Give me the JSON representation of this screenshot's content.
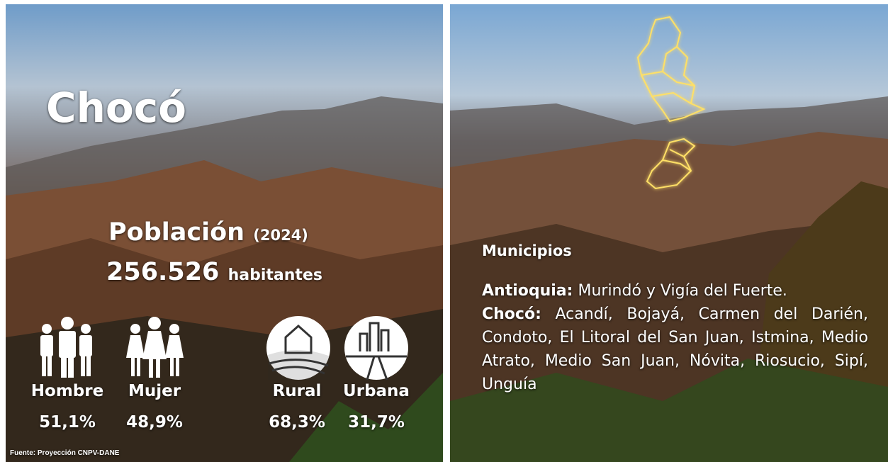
{
  "left": {
    "title": "Chocó",
    "population": {
      "label": "Población",
      "year": "(2024)",
      "value": "256.526",
      "unit": "habitantes"
    },
    "stats": [
      {
        "label": "Hombre",
        "value": "51,1%"
      },
      {
        "label": "Mujer",
        "value": "48,9%"
      },
      {
        "label": "Rural",
        "value": "68,3%"
      },
      {
        "label": "Urbana",
        "value": "31,7%"
      }
    ],
    "source": "Fuente: Proyección CNPV-DANE"
  },
  "right": {
    "heading": "Municipios",
    "groups": [
      {
        "name": "Antioquia:",
        "text": "Murindó y Vigía del Fuerte."
      },
      {
        "name": "Chocó:",
        "text": "Acandí, Bojayá, Carmen del Darién, Condoto, El Litoral del San Juan, Istmina, Medio Atrato, Medio San Juan, Nóvita, Riosucio, Sipí, Unguía"
      }
    ]
  }
}
